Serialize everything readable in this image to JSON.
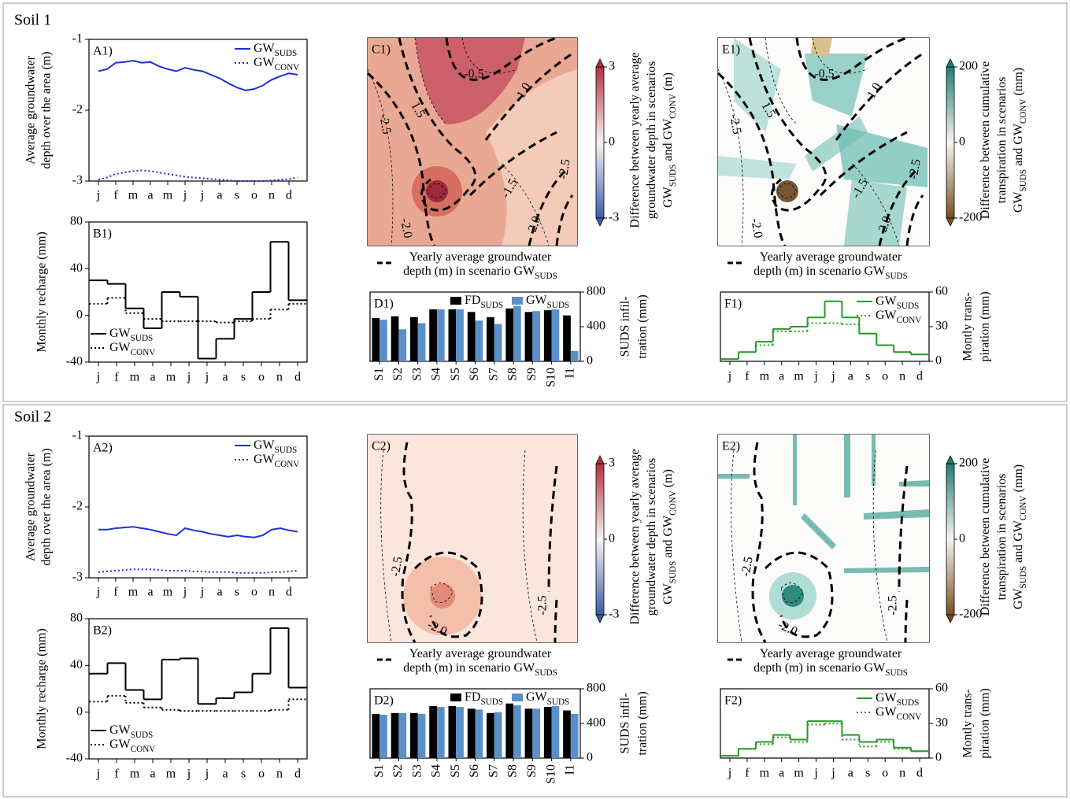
{
  "sections": [
    "Soil 1",
    "Soil 2"
  ],
  "chart_data": [
    {
      "type": "line",
      "panel_label": "A1)",
      "ylabel": [
        "Average groundwater",
        "depth over the area (m)"
      ],
      "categories": [
        "j",
        null,
        "f",
        null,
        "m",
        null,
        "a",
        null,
        "m",
        null,
        "j",
        null,
        "j",
        null,
        "a",
        null,
        "s",
        null,
        "o",
        null,
        "n",
        null,
        "d",
        null
      ],
      "series": [
        {
          "name": [
            "GW",
            "SUDS"
          ],
          "color": "#1f2fd6",
          "style": "solid",
          "values": [
            -1.45,
            -1.42,
            -1.33,
            -1.32,
            -1.3,
            -1.33,
            -1.32,
            -1.38,
            -1.42,
            -1.45,
            -1.4,
            -1.43,
            -1.45,
            -1.5,
            -1.55,
            -1.62,
            -1.68,
            -1.72,
            -1.7,
            -1.65,
            -1.57,
            -1.52,
            -1.48,
            -1.5
          ]
        },
        {
          "name": [
            "GW",
            "CONV"
          ],
          "color": "#1f2fd6",
          "style": "dotted",
          "values": [
            -2.98,
            -2.95,
            -2.9,
            -2.88,
            -2.86,
            -2.85,
            -2.86,
            -2.88,
            -2.9,
            -2.92,
            -2.94,
            -2.95,
            -2.96,
            -2.97,
            -2.98,
            -2.99,
            -3.0,
            -3.0,
            -3.0,
            -3.0,
            -2.99,
            -2.98,
            -2.97,
            -2.95
          ]
        }
      ],
      "ylim": [
        -3,
        -1
      ],
      "yticks": [
        -1,
        -2,
        -3
      ],
      "legend": "upper right"
    },
    {
      "type": "step",
      "panel_label": "B1)",
      "ylabel": [
        "Monthly recharge (mm)"
      ],
      "categories": [
        "j",
        "f",
        "m",
        "a",
        "m",
        "j",
        "j",
        "a",
        "s",
        "o",
        "n",
        "d"
      ],
      "series": [
        {
          "name": [
            "GW",
            "SUDS"
          ],
          "color": "#000000",
          "style": "solid",
          "values": [
            30,
            27,
            6,
            -11,
            20,
            16,
            -37,
            -20,
            -3,
            20,
            63,
            13
          ]
        },
        {
          "name": [
            "GW",
            "CONV"
          ],
          "color": "#000000",
          "style": "dotted",
          "values": [
            10,
            15,
            2,
            -3,
            -5,
            -5,
            -5,
            -6,
            -5,
            -3,
            5,
            10
          ]
        }
      ],
      "ylim": [
        -40,
        80
      ],
      "yticks": [
        -40,
        0,
        40,
        80
      ],
      "legend": "lower left"
    },
    {
      "type": "contour",
      "panel_label": "C1)",
      "field": "depth",
      "colorbar": {
        "lim": [
          -3,
          3
        ],
        "ticks": [
          3,
          0,
          -3
        ],
        "colors": [
          "#3a5ea8",
          "#f7f4f2",
          "#b3303d"
        ]
      },
      "colorbar_label": [
        [
          "Difference between yearly average"
        ],
        [
          "groundwater depth in scenarios"
        ],
        [
          "GW",
          "SUDS",
          " and GW",
          "CONV",
          " (m)"
        ]
      ],
      "contour_labels": [
        "-0.5",
        "-1.0",
        "1.5",
        "-2.5",
        "-1.5",
        "-2.0",
        "2.0",
        "-2.5"
      ],
      "legend_label": [
        [
          "Yearly average groundwater"
        ],
        [
          "depth (m) in scenario GW",
          "SUDS"
        ]
      ]
    },
    {
      "type": "bar",
      "panel_label": "D1)",
      "ylabel": [
        "SUDS infil-",
        "tration (mm)"
      ],
      "categories": [
        "S1",
        "S2",
        "S3",
        "S4",
        "S5",
        "S6",
        "S7",
        "S8",
        "S9",
        "S10",
        "I1"
      ],
      "series": [
        {
          "name": [
            "FD",
            "SUDS"
          ],
          "color": "#000000",
          "values": [
            500,
            520,
            510,
            600,
            600,
            570,
            510,
            610,
            570,
            590,
            530
          ]
        },
        {
          "name": [
            "GW",
            "SUDS"
          ],
          "color": "#5b8fc9",
          "values": [
            480,
            370,
            440,
            600,
            600,
            470,
            430,
            640,
            580,
            600,
            120
          ]
        }
      ],
      "ylim": [
        0,
        800
      ],
      "yticks": [
        0,
        400,
        800
      ],
      "legend": "upper right"
    },
    {
      "type": "contour",
      "panel_label": "E1)",
      "field": "transpiration",
      "colorbar": {
        "lim": [
          -200,
          200
        ],
        "ticks": [
          200,
          0,
          -200
        ],
        "colors": [
          "#7a4f22",
          "#f7f5f2",
          "#1f7f73"
        ]
      },
      "colorbar_label": [
        [
          "Difference between cumulative"
        ],
        [
          "transpiration in scenarios"
        ],
        [
          "GW",
          "SUDS",
          " and GW",
          "CONV",
          " (mm)"
        ]
      ],
      "contour_labels": [
        "-0.5",
        "-1.0",
        "1.5",
        "-2.5",
        "-1.5",
        "-2.0",
        "2.0",
        "-2.5"
      ],
      "legend_label": [
        [
          "Yearly average groundwater"
        ],
        [
          "depth (m) in scenario GW",
          "SUDS"
        ]
      ]
    },
    {
      "type": "step",
      "panel_label": "F1)",
      "ylabel": [
        "Montly trans-",
        "piration (mm)"
      ],
      "categories": [
        "j",
        "f",
        "m",
        "a",
        "m",
        "j",
        "j",
        "a",
        "s",
        "o",
        "n",
        "d"
      ],
      "series": [
        {
          "name": [
            "GW",
            "SUDS"
          ],
          "color": "#2a9a2a",
          "style": "solid",
          "values": [
            2,
            8,
            17,
            28,
            30,
            38,
            52,
            38,
            24,
            14,
            8,
            6
          ]
        },
        {
          "name": [
            "GW",
            "CONV"
          ],
          "color": "#2a9a2a",
          "style": "dotted",
          "values": [
            2,
            8,
            14,
            26,
            26,
            33,
            33,
            32,
            24,
            14,
            8,
            6
          ]
        }
      ],
      "ylim": [
        0,
        60
      ],
      "yticks": [
        0,
        30,
        60
      ],
      "legend": "upper right"
    },
    {
      "type": "line",
      "panel_label": "A2)",
      "ylabel": [
        "Average groundwater",
        "depth over the area (m)"
      ],
      "categories": [
        "j",
        null,
        "f",
        null,
        "m",
        null,
        "a",
        null,
        "m",
        null,
        "j",
        null,
        "j",
        null,
        "a",
        null,
        "s",
        null,
        "o",
        null,
        "n",
        null,
        "d",
        null
      ],
      "series": [
        {
          "name": [
            "GW",
            "SUDS"
          ],
          "color": "#1f2fd6",
          "style": "solid",
          "values": [
            -2.32,
            -2.32,
            -2.3,
            -2.29,
            -2.28,
            -2.3,
            -2.32,
            -2.35,
            -2.38,
            -2.4,
            -2.3,
            -2.33,
            -2.35,
            -2.38,
            -2.4,
            -2.42,
            -2.4,
            -2.42,
            -2.43,
            -2.4,
            -2.32,
            -2.3,
            -2.33,
            -2.35
          ]
        },
        {
          "name": [
            "GW",
            "CONV"
          ],
          "color": "#1f2fd6",
          "style": "dotted",
          "values": [
            -2.92,
            -2.91,
            -2.9,
            -2.89,
            -2.88,
            -2.88,
            -2.88,
            -2.89,
            -2.9,
            -2.9,
            -2.9,
            -2.91,
            -2.91,
            -2.92,
            -2.92,
            -2.92,
            -2.93,
            -2.93,
            -2.93,
            -2.93,
            -2.92,
            -2.92,
            -2.91,
            -2.9
          ]
        }
      ],
      "ylim": [
        -3,
        -1
      ],
      "yticks": [
        -1,
        -2,
        -3
      ],
      "legend": "upper right"
    },
    {
      "type": "step",
      "panel_label": "B2)",
      "ylabel": [
        "Monthly recharge (mm)"
      ],
      "categories": [
        "j",
        "f",
        "m",
        "a",
        "m",
        "j",
        "j",
        "a",
        "s",
        "o",
        "n",
        "d"
      ],
      "series": [
        {
          "name": [
            "GW",
            "SUDS"
          ],
          "color": "#000000",
          "style": "solid",
          "values": [
            33,
            42,
            19,
            11,
            45,
            46,
            7,
            12,
            17,
            33,
            72,
            21
          ]
        },
        {
          "name": [
            "GW",
            "CONV"
          ],
          "color": "#000000",
          "style": "dotted",
          "values": [
            9,
            14,
            8,
            4,
            2,
            1,
            1,
            1,
            1,
            1,
            2,
            11
          ]
        }
      ],
      "ylim": [
        -40,
        80
      ],
      "yticks": [
        -40,
        0,
        40,
        80
      ],
      "legend": "lower left"
    },
    {
      "type": "contour",
      "panel_label": "C2)",
      "field": "depth",
      "colorbar": {
        "lim": [
          -3,
          3
        ],
        "ticks": [
          3,
          0,
          -3
        ],
        "colors": [
          "#3a5ea8",
          "#f7f4f2",
          "#b3303d"
        ]
      },
      "colorbar_label": [
        [
          "Difference between yearly average"
        ],
        [
          "groundwater depth in scenarios"
        ],
        [
          "GW",
          "SUDS",
          " and GW",
          "CONV",
          " (m)"
        ]
      ],
      "contour_labels": [
        "-2.5",
        "-2.0",
        "-2.5"
      ],
      "legend_label": [
        [
          "Yearly average groundwater"
        ],
        [
          "depth (m) in scenario GW",
          "SUDS"
        ]
      ]
    },
    {
      "type": "bar",
      "panel_label": "D2)",
      "ylabel": [
        "SUDS infil-",
        "tration (mm)"
      ],
      "categories": [
        "S1",
        "S2",
        "S3",
        "S4",
        "S5",
        "S6",
        "S7",
        "S8",
        "S9",
        "S10",
        "I1"
      ],
      "series": [
        {
          "name": [
            "FD",
            "SUDS"
          ],
          "color": "#000000",
          "values": [
            510,
            520,
            520,
            600,
            600,
            570,
            520,
            630,
            570,
            590,
            550
          ]
        },
        {
          "name": [
            "GW",
            "SUDS"
          ],
          "color": "#5b8fc9",
          "values": [
            500,
            520,
            510,
            590,
            590,
            560,
            530,
            610,
            570,
            600,
            510
          ]
        }
      ],
      "ylim": [
        0,
        800
      ],
      "yticks": [
        0,
        400,
        800
      ],
      "legend": "upper right"
    },
    {
      "type": "contour",
      "panel_label": "E2)",
      "field": "transpiration",
      "colorbar": {
        "lim": [
          -200,
          200
        ],
        "ticks": [
          200,
          0,
          -200
        ],
        "colors": [
          "#7a4f22",
          "#f7f5f2",
          "#1f7f73"
        ]
      },
      "colorbar_label": [
        [
          "Difference between cumulative"
        ],
        [
          "transpiration in scenarios"
        ],
        [
          "GW",
          "SUDS",
          " and GW",
          "CONV",
          " (mm)"
        ]
      ],
      "contour_labels": [
        "-2.5",
        "-2.0",
        "-2.5"
      ],
      "legend_label": [
        [
          "Yearly average groundwater"
        ],
        [
          "depth (m) in scenario GW",
          "SUDS"
        ]
      ]
    },
    {
      "type": "step",
      "panel_label": "F2)",
      "ylabel": [
        "Montly trans-",
        "piration (mm)"
      ],
      "categories": [
        "j",
        "f",
        "m",
        "a",
        "m",
        "j",
        "j",
        "a",
        "s",
        "o",
        "n",
        "d"
      ],
      "series": [
        {
          "name": [
            "GW",
            "SUDS"
          ],
          "color": "#2a9a2a",
          "style": "solid",
          "values": [
            2,
            8,
            14,
            20,
            16,
            32,
            32,
            20,
            14,
            16,
            9,
            6
          ]
        },
        {
          "name": [
            "GW",
            "CONV"
          ],
          "color": "#2a9a2a",
          "style": "dotted",
          "values": [
            2,
            8,
            12,
            18,
            14,
            29,
            30,
            16,
            10,
            14,
            8,
            6
          ]
        }
      ],
      "ylim": [
        0,
        60
      ],
      "yticks": [
        0,
        30,
        60
      ],
      "legend": "upper right"
    }
  ]
}
